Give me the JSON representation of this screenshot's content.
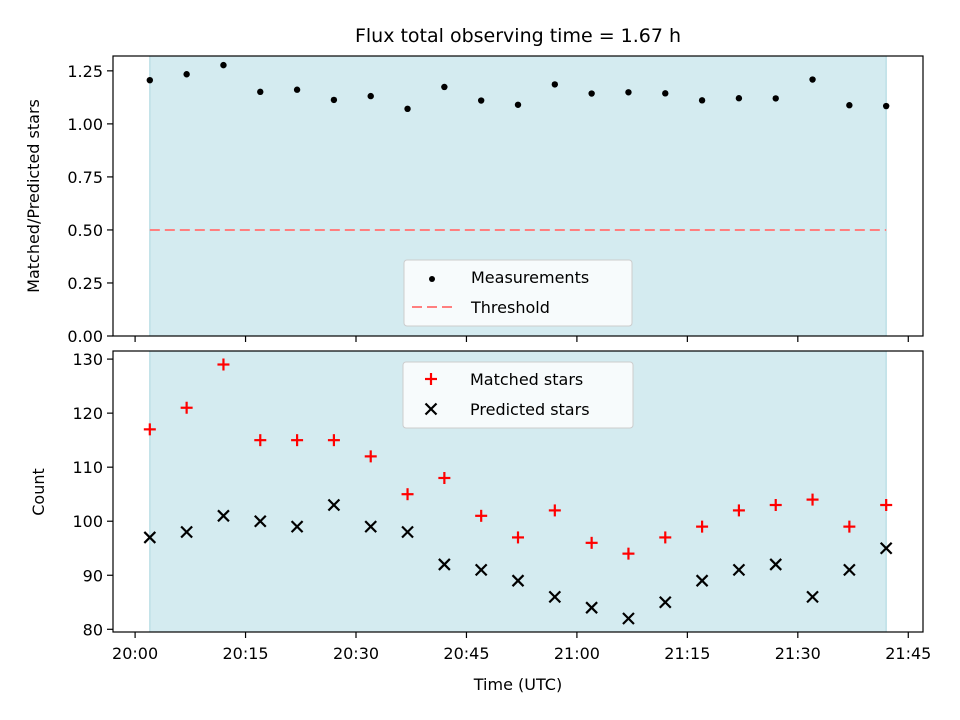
{
  "chart_data": [
    {
      "type": "scatter",
      "title": "Flux total observing time = 1.67 h",
      "xlabel": "",
      "ylabel": "Matched/Predicted stars",
      "ylim": [
        0,
        1.32
      ],
      "yticks": [
        "0.00",
        "0.25",
        "0.50",
        "0.75",
        "1.00",
        "1.25"
      ],
      "shaded_span": [
        "20:02",
        "21:42"
      ],
      "shade_color": "#d4ebf0",
      "legend_position": "lower-center",
      "x": [
        "20:02",
        "20:07",
        "20:12",
        "20:17",
        "20:22",
        "20:27",
        "20:32",
        "20:37",
        "20:42",
        "20:47",
        "20:52",
        "20:57",
        "21:02",
        "21:07",
        "21:12",
        "21:17",
        "21:22",
        "21:27",
        "21:32",
        "21:37",
        "21:42"
      ],
      "series": [
        {
          "name": "Measurements",
          "marker": "dot",
          "color": "#000000",
          "values": [
            1.206,
            1.234,
            1.277,
            1.151,
            1.161,
            1.113,
            1.131,
            1.071,
            1.174,
            1.11,
            1.09,
            1.186,
            1.143,
            1.149,
            1.144,
            1.111,
            1.121,
            1.12,
            1.209,
            1.088,
            1.084
          ]
        },
        {
          "name": "Threshold",
          "style": "dashed",
          "color": "#ff7f7f",
          "values": [
            0.5,
            0.5
          ]
        }
      ]
    },
    {
      "type": "scatter",
      "title": "",
      "xlabel": "Time (UTC)",
      "ylabel": "Count",
      "ylim": [
        79.5,
        131.5
      ],
      "yticks": [
        "80",
        "90",
        "100",
        "110",
        "120",
        "130"
      ],
      "xticks": [
        "20:00",
        "20:15",
        "20:30",
        "20:45",
        "21:00",
        "21:15",
        "21:30",
        "21:45"
      ],
      "shaded_span": [
        "20:02",
        "21:42"
      ],
      "shade_color": "#d4ebf0",
      "legend_position": "upper-center",
      "x": [
        "20:02",
        "20:07",
        "20:12",
        "20:17",
        "20:22",
        "20:27",
        "20:32",
        "20:37",
        "20:42",
        "20:47",
        "20:52",
        "20:57",
        "21:02",
        "21:07",
        "21:12",
        "21:17",
        "21:22",
        "21:27",
        "21:32",
        "21:37",
        "21:42"
      ],
      "series": [
        {
          "name": "Matched stars",
          "marker": "plus",
          "color": "#ff0000",
          "values": [
            117,
            121,
            129,
            115,
            115,
            115,
            112,
            105,
            108,
            101,
            97,
            102,
            96,
            94,
            97,
            99,
            102,
            103,
            104,
            99,
            103
          ]
        },
        {
          "name": "Predicted stars",
          "marker": "x",
          "color": "#000000",
          "values": [
            97,
            98,
            101,
            100,
            99,
            103,
            99,
            98,
            92,
            91,
            89,
            86,
            84,
            82,
            85,
            89,
            91,
            92,
            86,
            91,
            95
          ]
        }
      ]
    }
  ]
}
